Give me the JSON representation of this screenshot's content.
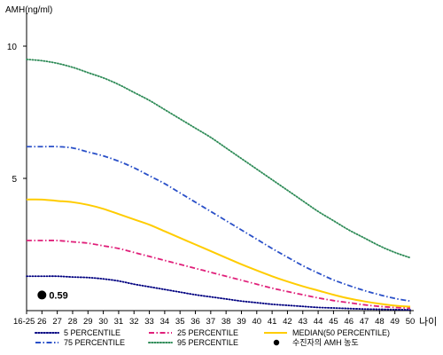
{
  "chart_data": {
    "type": "line",
    "ylabel": "AMH(ng/ml)",
    "xlabel": "나이",
    "ylim": [
      0,
      11
    ],
    "yticks": [
      5,
      10
    ],
    "grid": false,
    "legend_position": "bottom",
    "categories": [
      "16-25",
      "26",
      "27",
      "28",
      "29",
      "30",
      "31",
      "32",
      "33",
      "34",
      "35",
      "36",
      "37",
      "38",
      "39",
      "40",
      "41",
      "42",
      "43",
      "44",
      "45",
      "46",
      "47",
      "48",
      "49",
      "50"
    ],
    "series": [
      {
        "name": "5 PERCENTILE",
        "color": "#000080",
        "style": "dotted",
        "values": [
          1.3,
          1.3,
          1.3,
          1.27,
          1.25,
          1.2,
          1.12,
          1.0,
          0.9,
          0.8,
          0.7,
          0.6,
          0.52,
          0.44,
          0.36,
          0.3,
          0.24,
          0.2,
          0.16,
          0.12,
          0.1,
          0.08,
          0.06,
          0.05,
          0.04,
          0.03
        ]
      },
      {
        "name": "25 PERCENTILE",
        "color": "#e0207a",
        "style": "dashdot",
        "values": [
          2.65,
          2.65,
          2.65,
          2.6,
          2.55,
          2.45,
          2.35,
          2.2,
          2.05,
          1.9,
          1.75,
          1.6,
          1.45,
          1.3,
          1.15,
          1.0,
          0.85,
          0.72,
          0.6,
          0.48,
          0.38,
          0.3,
          0.22,
          0.16,
          0.12,
          0.09
        ]
      },
      {
        "name": "MEDIAN(50 PERCENTILE)",
        "color": "#ffcc00",
        "style": "solid",
        "values": [
          4.2,
          4.2,
          4.15,
          4.1,
          4.0,
          3.85,
          3.65,
          3.45,
          3.25,
          3.0,
          2.75,
          2.5,
          2.25,
          2.0,
          1.75,
          1.52,
          1.3,
          1.1,
          0.92,
          0.76,
          0.6,
          0.46,
          0.35,
          0.26,
          0.19,
          0.15
        ]
      },
      {
        "name": "75 PERCENTILE",
        "color": "#2a50c8",
        "style": "dashdot",
        "values": [
          6.2,
          6.2,
          6.2,
          6.15,
          6.0,
          5.85,
          5.65,
          5.4,
          5.1,
          4.8,
          4.45,
          4.1,
          3.75,
          3.4,
          3.05,
          2.7,
          2.35,
          2.02,
          1.7,
          1.42,
          1.16,
          0.95,
          0.76,
          0.6,
          0.46,
          0.36
        ]
      },
      {
        "name": "95 PERCENTILE",
        "color": "#2e8b57",
        "style": "dotted",
        "values": [
          9.5,
          9.45,
          9.35,
          9.2,
          9.0,
          8.8,
          8.55,
          8.25,
          7.95,
          7.6,
          7.25,
          6.9,
          6.55,
          6.15,
          5.75,
          5.35,
          4.95,
          4.55,
          4.15,
          3.75,
          3.4,
          3.05,
          2.75,
          2.45,
          2.2,
          2.0
        ]
      }
    ],
    "point": {
      "label": "수진자의 AMH 농도",
      "x": "26",
      "y": 0.59,
      "value_label": "0.59",
      "color": "#000000"
    }
  }
}
